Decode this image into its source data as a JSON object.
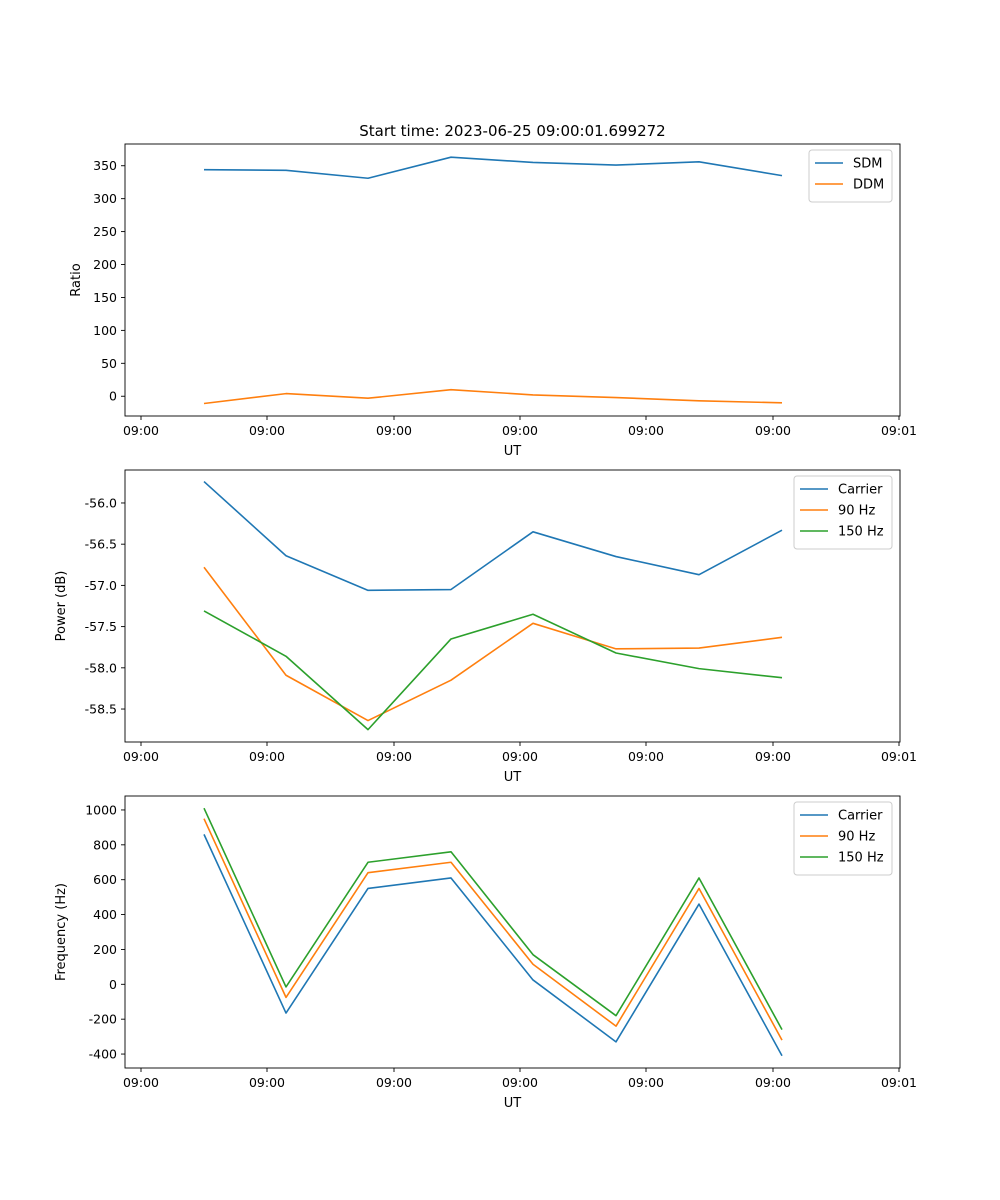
{
  "figure": {
    "title": "Start time: 2023-06-25 09:00:01.699272"
  },
  "colors": {
    "blue": "#1f77b4",
    "orange": "#ff7f0e",
    "green": "#2ca02c"
  },
  "chart_data": [
    {
      "type": "line",
      "xlabel": "UT",
      "ylabel": "Ratio",
      "xticks": [
        "09:00",
        "09:00",
        "09:00",
        "09:00",
        "09:00",
        "09:00",
        "09:01"
      ],
      "ylim": [
        -30,
        383
      ],
      "yticks": [
        0,
        50,
        100,
        150,
        200,
        250,
        300,
        350
      ],
      "legend": "top-right",
      "series": [
        {
          "name": "SDM",
          "color": "#1f77b4",
          "values": [
            344,
            343,
            331,
            363,
            355,
            351,
            356,
            335
          ]
        },
        {
          "name": "DDM",
          "color": "#ff7f0e",
          "values": [
            -11,
            4,
            -3,
            10,
            2,
            -2,
            -7,
            -10
          ]
        }
      ]
    },
    {
      "type": "line",
      "xlabel": "UT",
      "ylabel": "Power (dB)",
      "xticks": [
        "09:00",
        "09:00",
        "09:00",
        "09:00",
        "09:00",
        "09:00",
        "09:01"
      ],
      "ylim": [
        -58.9,
        -55.6
      ],
      "yticks": [
        -58.5,
        -58.0,
        -57.5,
        -57.0,
        -56.5,
        -56.0
      ],
      "legend": "top-right",
      "series": [
        {
          "name": "Carrier",
          "color": "#1f77b4",
          "values": [
            -55.74,
            -56.64,
            -57.06,
            -57.05,
            -56.35,
            -56.65,
            -56.87,
            -56.33
          ]
        },
        {
          "name": "90 Hz",
          "color": "#ff7f0e",
          "values": [
            -56.78,
            -58.09,
            -58.64,
            -58.15,
            -57.46,
            -57.77,
            -57.76,
            -57.63
          ]
        },
        {
          "name": "150 Hz",
          "color": "#2ca02c",
          "values": [
            -57.31,
            -57.86,
            -58.75,
            -57.65,
            -57.35,
            -57.82,
            -58.01,
            -58.12
          ]
        }
      ]
    },
    {
      "type": "line",
      "xlabel": "UT",
      "ylabel": "Frequency (Hz)",
      "xticks": [
        "09:00",
        "09:00",
        "09:00",
        "09:00",
        "09:00",
        "09:00",
        "09:01"
      ],
      "ylim": [
        -480,
        1080
      ],
      "yticks": [
        -400,
        -200,
        0,
        200,
        400,
        600,
        800,
        1000
      ],
      "legend": "top-right",
      "series": [
        {
          "name": "Carrier",
          "color": "#1f77b4",
          "values": [
            860,
            -165,
            550,
            610,
            25,
            -330,
            460,
            -410
          ]
        },
        {
          "name": "90 Hz",
          "color": "#ff7f0e",
          "values": [
            950,
            -75,
            640,
            700,
            115,
            -240,
            550,
            -320
          ]
        },
        {
          "name": "150 Hz",
          "color": "#2ca02c",
          "values": [
            1010,
            -15,
            700,
            760,
            170,
            -180,
            610,
            -260
          ]
        }
      ]
    }
  ]
}
